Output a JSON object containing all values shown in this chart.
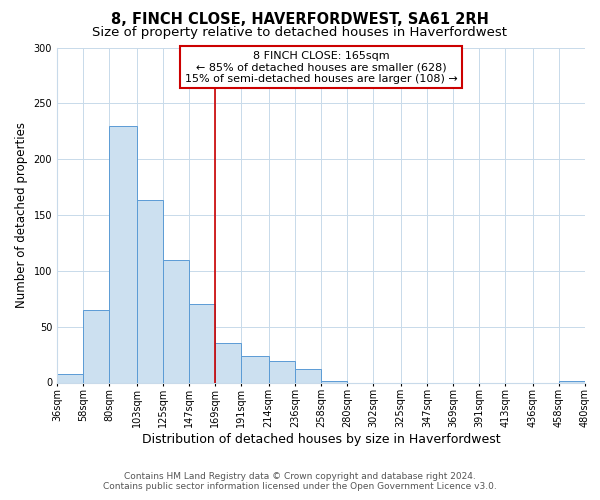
{
  "title": "8, FINCH CLOSE, HAVERFORDWEST, SA61 2RH",
  "subtitle": "Size of property relative to detached houses in Haverfordwest",
  "xlabel": "Distribution of detached houses by size in Haverfordwest",
  "ylabel": "Number of detached properties",
  "bar_left_edges": [
    36,
    58,
    80,
    103,
    125,
    147,
    169,
    191,
    214,
    236,
    258,
    280,
    302,
    325,
    347,
    369,
    391,
    413,
    436,
    458
  ],
  "bar_heights": [
    8,
    65,
    230,
    163,
    110,
    70,
    35,
    24,
    19,
    12,
    1,
    0,
    0,
    0,
    0,
    0,
    0,
    0,
    0,
    1
  ],
  "bar_widths": [
    22,
    22,
    23,
    22,
    22,
    22,
    22,
    23,
    22,
    22,
    22,
    23,
    22,
    22,
    22,
    22,
    22,
    23,
    22,
    22
  ],
  "x_tick_labels": [
    "36sqm",
    "58sqm",
    "80sqm",
    "103sqm",
    "125sqm",
    "147sqm",
    "169sqm",
    "191sqm",
    "214sqm",
    "236sqm",
    "258sqm",
    "280sqm",
    "302sqm",
    "325sqm",
    "347sqm",
    "369sqm",
    "391sqm",
    "413sqm",
    "436sqm",
    "458sqm",
    "480sqm"
  ],
  "x_tick_positions": [
    36,
    58,
    80,
    103,
    125,
    147,
    169,
    191,
    214,
    236,
    258,
    280,
    302,
    325,
    347,
    369,
    391,
    413,
    436,
    458,
    480
  ],
  "ylim": [
    0,
    300
  ],
  "yticks": [
    0,
    50,
    100,
    150,
    200,
    250,
    300
  ],
  "bar_color": "#cce0f0",
  "bar_edge_color": "#5b9bd5",
  "vline_x": 169,
  "vline_color": "#cc0000",
  "annotation_title": "8 FINCH CLOSE: 165sqm",
  "annotation_line1": "← 85% of detached houses are smaller (628)",
  "annotation_line2": "15% of semi-detached houses are larger (108) →",
  "annotation_box_color": "#ffffff",
  "annotation_box_edge": "#cc0000",
  "bg_color": "#ffffff",
  "grid_color": "#c8daea",
  "footer_line1": "Contains HM Land Registry data © Crown copyright and database right 2024.",
  "footer_line2": "Contains public sector information licensed under the Open Government Licence v3.0.",
  "title_fontsize": 10.5,
  "subtitle_fontsize": 9.5,
  "xlabel_fontsize": 9,
  "ylabel_fontsize": 8.5,
  "tick_fontsize": 7,
  "annotation_fontsize": 8,
  "footer_fontsize": 6.5
}
